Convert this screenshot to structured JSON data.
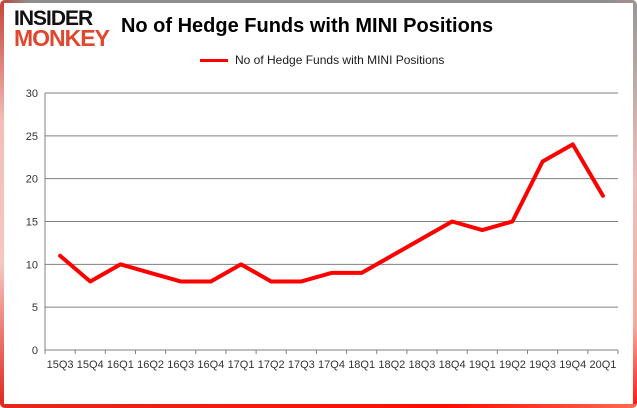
{
  "logo": {
    "line1": "INSIDER",
    "line2": "MONKEY"
  },
  "header": {
    "title": "No of Hedge Funds with MINI Positions"
  },
  "legend": {
    "label": "No of Hedge Funds with MINI Positions",
    "line_color": "#ff0000"
  },
  "colors": {
    "series_line": "#ff0000",
    "logo_red": "#e0472f",
    "grid": "#808080",
    "axis_text": "#333333",
    "frame_red": "#e0251a",
    "frame_gray": "#8f8f8f"
  },
  "chart_data": {
    "type": "line",
    "title": "No of Hedge Funds with MINI Positions",
    "categories": [
      "15Q3",
      "15Q4",
      "16Q1",
      "16Q2",
      "16Q3",
      "16Q4",
      "17Q1",
      "17Q2",
      "17Q3",
      "17Q4",
      "18Q1",
      "18Q2",
      "18Q3",
      "18Q4",
      "19Q1",
      "19Q2",
      "19Q3",
      "19Q4",
      "20Q1"
    ],
    "series": [
      {
        "name": "No of Hedge Funds with MINI Positions",
        "color": "#ff0000",
        "values": [
          11,
          8,
          10,
          9,
          8,
          8,
          10,
          8,
          8,
          9,
          9,
          11,
          13,
          15,
          14,
          15,
          22,
          24,
          18
        ]
      }
    ],
    "xlabel": "",
    "ylabel": "",
    "ylim": [
      0,
      30
    ],
    "yticks": [
      0,
      5,
      10,
      15,
      20,
      25,
      30
    ],
    "grid": true,
    "legend_position": "top"
  }
}
